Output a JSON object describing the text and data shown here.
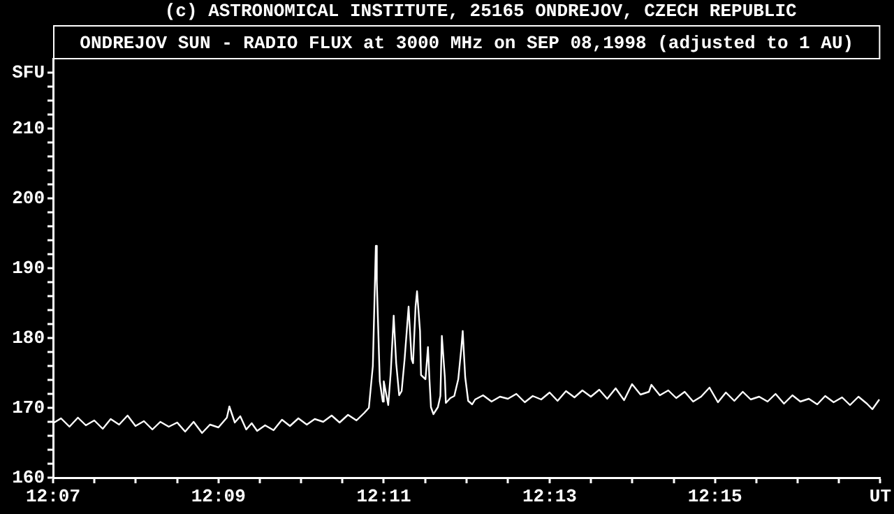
{
  "chart_data": {
    "type": "line",
    "title": "ONDREJOV SUN - RADIO FLUX at 3000 MHz on SEP 08,1998 (adjusted to 1 AU)",
    "annotations": [
      "(c) ASTRONOMICAL INSTITUTE, 25165 ONDREJOV, CZECH REPUBLIC"
    ],
    "marker": "none",
    "line_style": "solid",
    "xlim": [
      12.1167,
      12.2833
    ],
    "xticks": [
      {
        "value": 12.1167,
        "label": "12:07"
      },
      {
        "value": 12.125,
        "label": null
      },
      {
        "value": 12.1333,
        "label": null
      },
      {
        "value": 12.1417,
        "label": null
      },
      {
        "value": 12.15,
        "label": "12:09"
      },
      {
        "value": 12.1583,
        "label": null
      },
      {
        "value": 12.1667,
        "label": null
      },
      {
        "value": 12.175,
        "label": null
      },
      {
        "value": 12.1833,
        "label": "12:11"
      },
      {
        "value": 12.1917,
        "label": null
      },
      {
        "value": 12.2,
        "label": null
      },
      {
        "value": 12.2083,
        "label": null
      },
      {
        "value": 12.2167,
        "label": "12:13"
      },
      {
        "value": 12.225,
        "label": null
      },
      {
        "value": 12.2333,
        "label": null
      },
      {
        "value": 12.2417,
        "label": null
      },
      {
        "value": 12.25,
        "label": "12:15"
      },
      {
        "value": 12.2583,
        "label": null
      },
      {
        "value": 12.2667,
        "label": null
      },
      {
        "value": 12.275,
        "label": null
      },
      {
        "value": 12.2833,
        "label": "UT"
      }
    ],
    "ylim": [
      160,
      220
    ],
    "yticks": [
      160,
      {
        "value": 162,
        "label": null
      },
      {
        "value": 164,
        "label": null
      },
      {
        "value": 166,
        "label": null
      },
      {
        "value": 168,
        "label": null
      },
      170,
      {
        "value": 172,
        "label": null
      },
      {
        "value": 174,
        "label": null
      },
      {
        "value": 176,
        "label": null
      },
      {
        "value": 178,
        "label": null
      },
      180,
      {
        "value": 182,
        "label": null
      },
      {
        "value": 184,
        "label": null
      },
      {
        "value": 186,
        "label": null
      },
      {
        "value": 188,
        "label": null
      },
      190,
      {
        "value": 192,
        "label": null
      },
      {
        "value": 194,
        "label": null
      },
      {
        "value": 196,
        "label": null
      },
      {
        "value": 198,
        "label": null
      },
      200,
      {
        "value": 202,
        "label": null
      },
      {
        "value": 204,
        "label": null
      },
      {
        "value": 206,
        "label": null
      },
      {
        "value": 208,
        "label": null
      },
      210,
      {
        "value": 212,
        "label": null
      },
      {
        "value": 214,
        "label": null
      },
      {
        "value": 216,
        "label": null
      },
      {
        "value": 218,
        "label": "SFU"
      }
    ],
    "series": [
      {
        "color": "#ffffff",
        "x": [
          12.1167,
          12.1183,
          12.12,
          12.1217,
          12.1233,
          12.125,
          12.1267,
          12.1283,
          12.13,
          12.1317,
          12.1333,
          12.135,
          12.1367,
          12.1383,
          12.14,
          12.1417,
          12.1433,
          12.145,
          12.1467,
          12.1483,
          12.15,
          12.1517,
          12.1522,
          12.1533,
          12.1544,
          12.1556,
          12.1567,
          12.1578,
          12.1594,
          12.1611,
          12.1628,
          12.1644,
          12.1661,
          12.1678,
          12.1694,
          12.1711,
          12.1728,
          12.1744,
          12.1761,
          12.1778,
          12.1794,
          12.1803,
          12.1811,
          12.1817,
          12.1819,
          12.1825,
          12.1831,
          12.1833,
          12.1842,
          12.1847,
          12.1853,
          12.1858,
          12.1864,
          12.1869,
          12.1875,
          12.1883,
          12.1889,
          12.1892,
          12.1897,
          12.19,
          12.1906,
          12.1908,
          12.1917,
          12.1922,
          12.1925,
          12.1928,
          12.1933,
          12.1942,
          12.1947,
          12.195,
          12.1956,
          12.1958,
          12.1967,
          12.1975,
          12.1983,
          12.1989,
          12.1992,
          12.1997,
          12.2003,
          12.2011,
          12.2017,
          12.2033,
          12.205,
          12.2067,
          12.2083,
          12.21,
          12.2117,
          12.2133,
          12.215,
          12.2167,
          12.2183,
          12.22,
          12.2217,
          12.2233,
          12.225,
          12.2267,
          12.2283,
          12.23,
          12.2317,
          12.2333,
          12.235,
          12.2367,
          12.2372,
          12.2389,
          12.2406,
          12.2422,
          12.2439,
          12.2456,
          12.2472,
          12.2489,
          12.2506,
          12.2522,
          12.2539,
          12.2556,
          12.2572,
          12.2589,
          12.2606,
          12.2622,
          12.2639,
          12.2656,
          12.2672,
          12.2689,
          12.2706,
          12.2722,
          12.2739,
          12.2756,
          12.2772,
          12.2789,
          12.2806,
          12.2817,
          12.2831
        ],
        "values": [
          167.8,
          168.5,
          167.3,
          168.6,
          167.5,
          168.2,
          167.0,
          168.4,
          167.6,
          168.9,
          167.4,
          168.1,
          166.9,
          168.0,
          167.3,
          167.9,
          166.6,
          168.0,
          166.4,
          167.6,
          167.2,
          168.6,
          170.2,
          167.9,
          168.8,
          166.9,
          167.8,
          166.7,
          167.5,
          166.8,
          168.3,
          167.4,
          168.5,
          167.6,
          168.4,
          168.0,
          168.9,
          167.9,
          169.0,
          168.2,
          169.3,
          170.0,
          176.0,
          193.2,
          188.0,
          173.8,
          170.9,
          173.8,
          170.4,
          175.0,
          183.2,
          176.4,
          171.8,
          172.4,
          177.0,
          184.5,
          177.0,
          176.4,
          184.5,
          186.7,
          181.0,
          174.7,
          174.1,
          178.7,
          174.1,
          170.1,
          169.1,
          170.1,
          171.7,
          180.3,
          174.4,
          170.7,
          171.4,
          171.7,
          174.1,
          178.4,
          181.0,
          174.4,
          171.0,
          170.5,
          171.2,
          171.8,
          170.9,
          171.6,
          171.3,
          172.0,
          170.8,
          171.7,
          171.2,
          172.2,
          171.0,
          172.4,
          171.5,
          172.5,
          171.6,
          172.6,
          171.3,
          172.8,
          171.1,
          173.4,
          171.9,
          172.3,
          173.3,
          171.8,
          172.5,
          171.4,
          172.3,
          170.9,
          171.6,
          172.9,
          170.8,
          172.2,
          171.0,
          172.3,
          171.2,
          171.6,
          170.9,
          172.0,
          170.6,
          171.8,
          170.9,
          171.3,
          170.5,
          171.7,
          170.8,
          171.5,
          170.4,
          171.6,
          170.6,
          169.8,
          171.2
        ]
      }
    ]
  }
}
